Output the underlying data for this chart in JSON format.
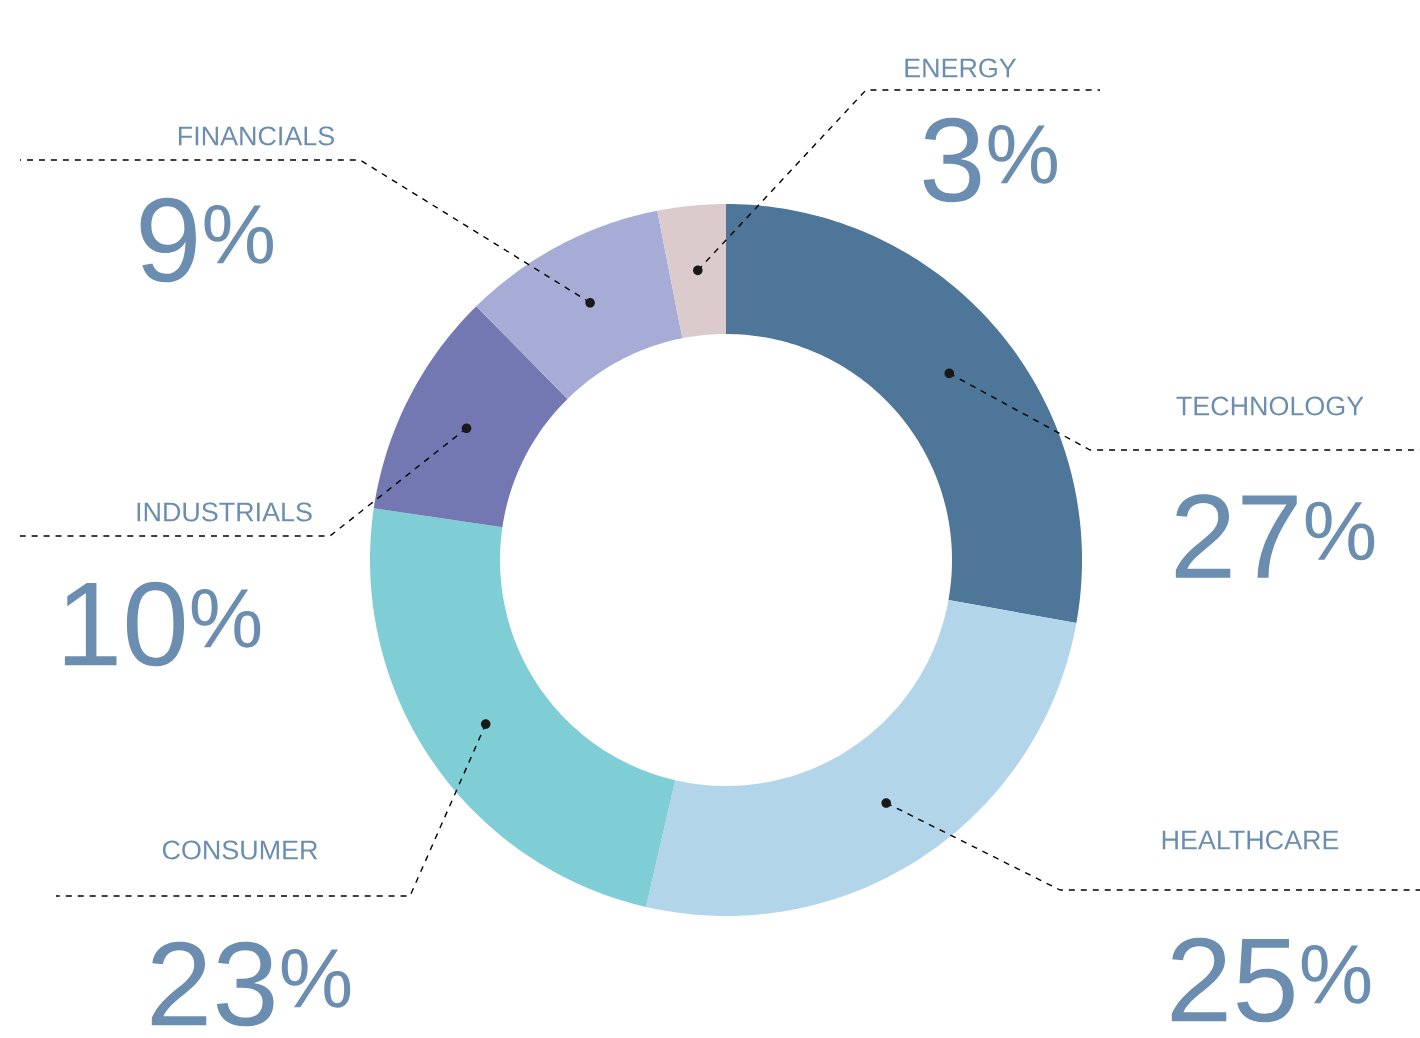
{
  "chart_data": {
    "type": "donut",
    "categories": [
      "TECHNOLOGY",
      "HEALTHCARE",
      "CONSUMER",
      "INDUSTRIALS",
      "FINANCIALS",
      "ENERGY"
    ],
    "values": [
      27,
      25,
      23,
      10,
      9,
      3
    ],
    "value_labels": [
      "27$^{%}$",
      "25$^{%}$",
      "23$^{%}$",
      "10$^{%}$",
      "9$^{%}$",
      "3$^{%}$"
    ],
    "colors": [
      "#4e7699",
      "#b3d5ea",
      "#7fcdd5",
      "#7378b3",
      "#a7acd6",
      "#dccbcc"
    ]
  }
}
